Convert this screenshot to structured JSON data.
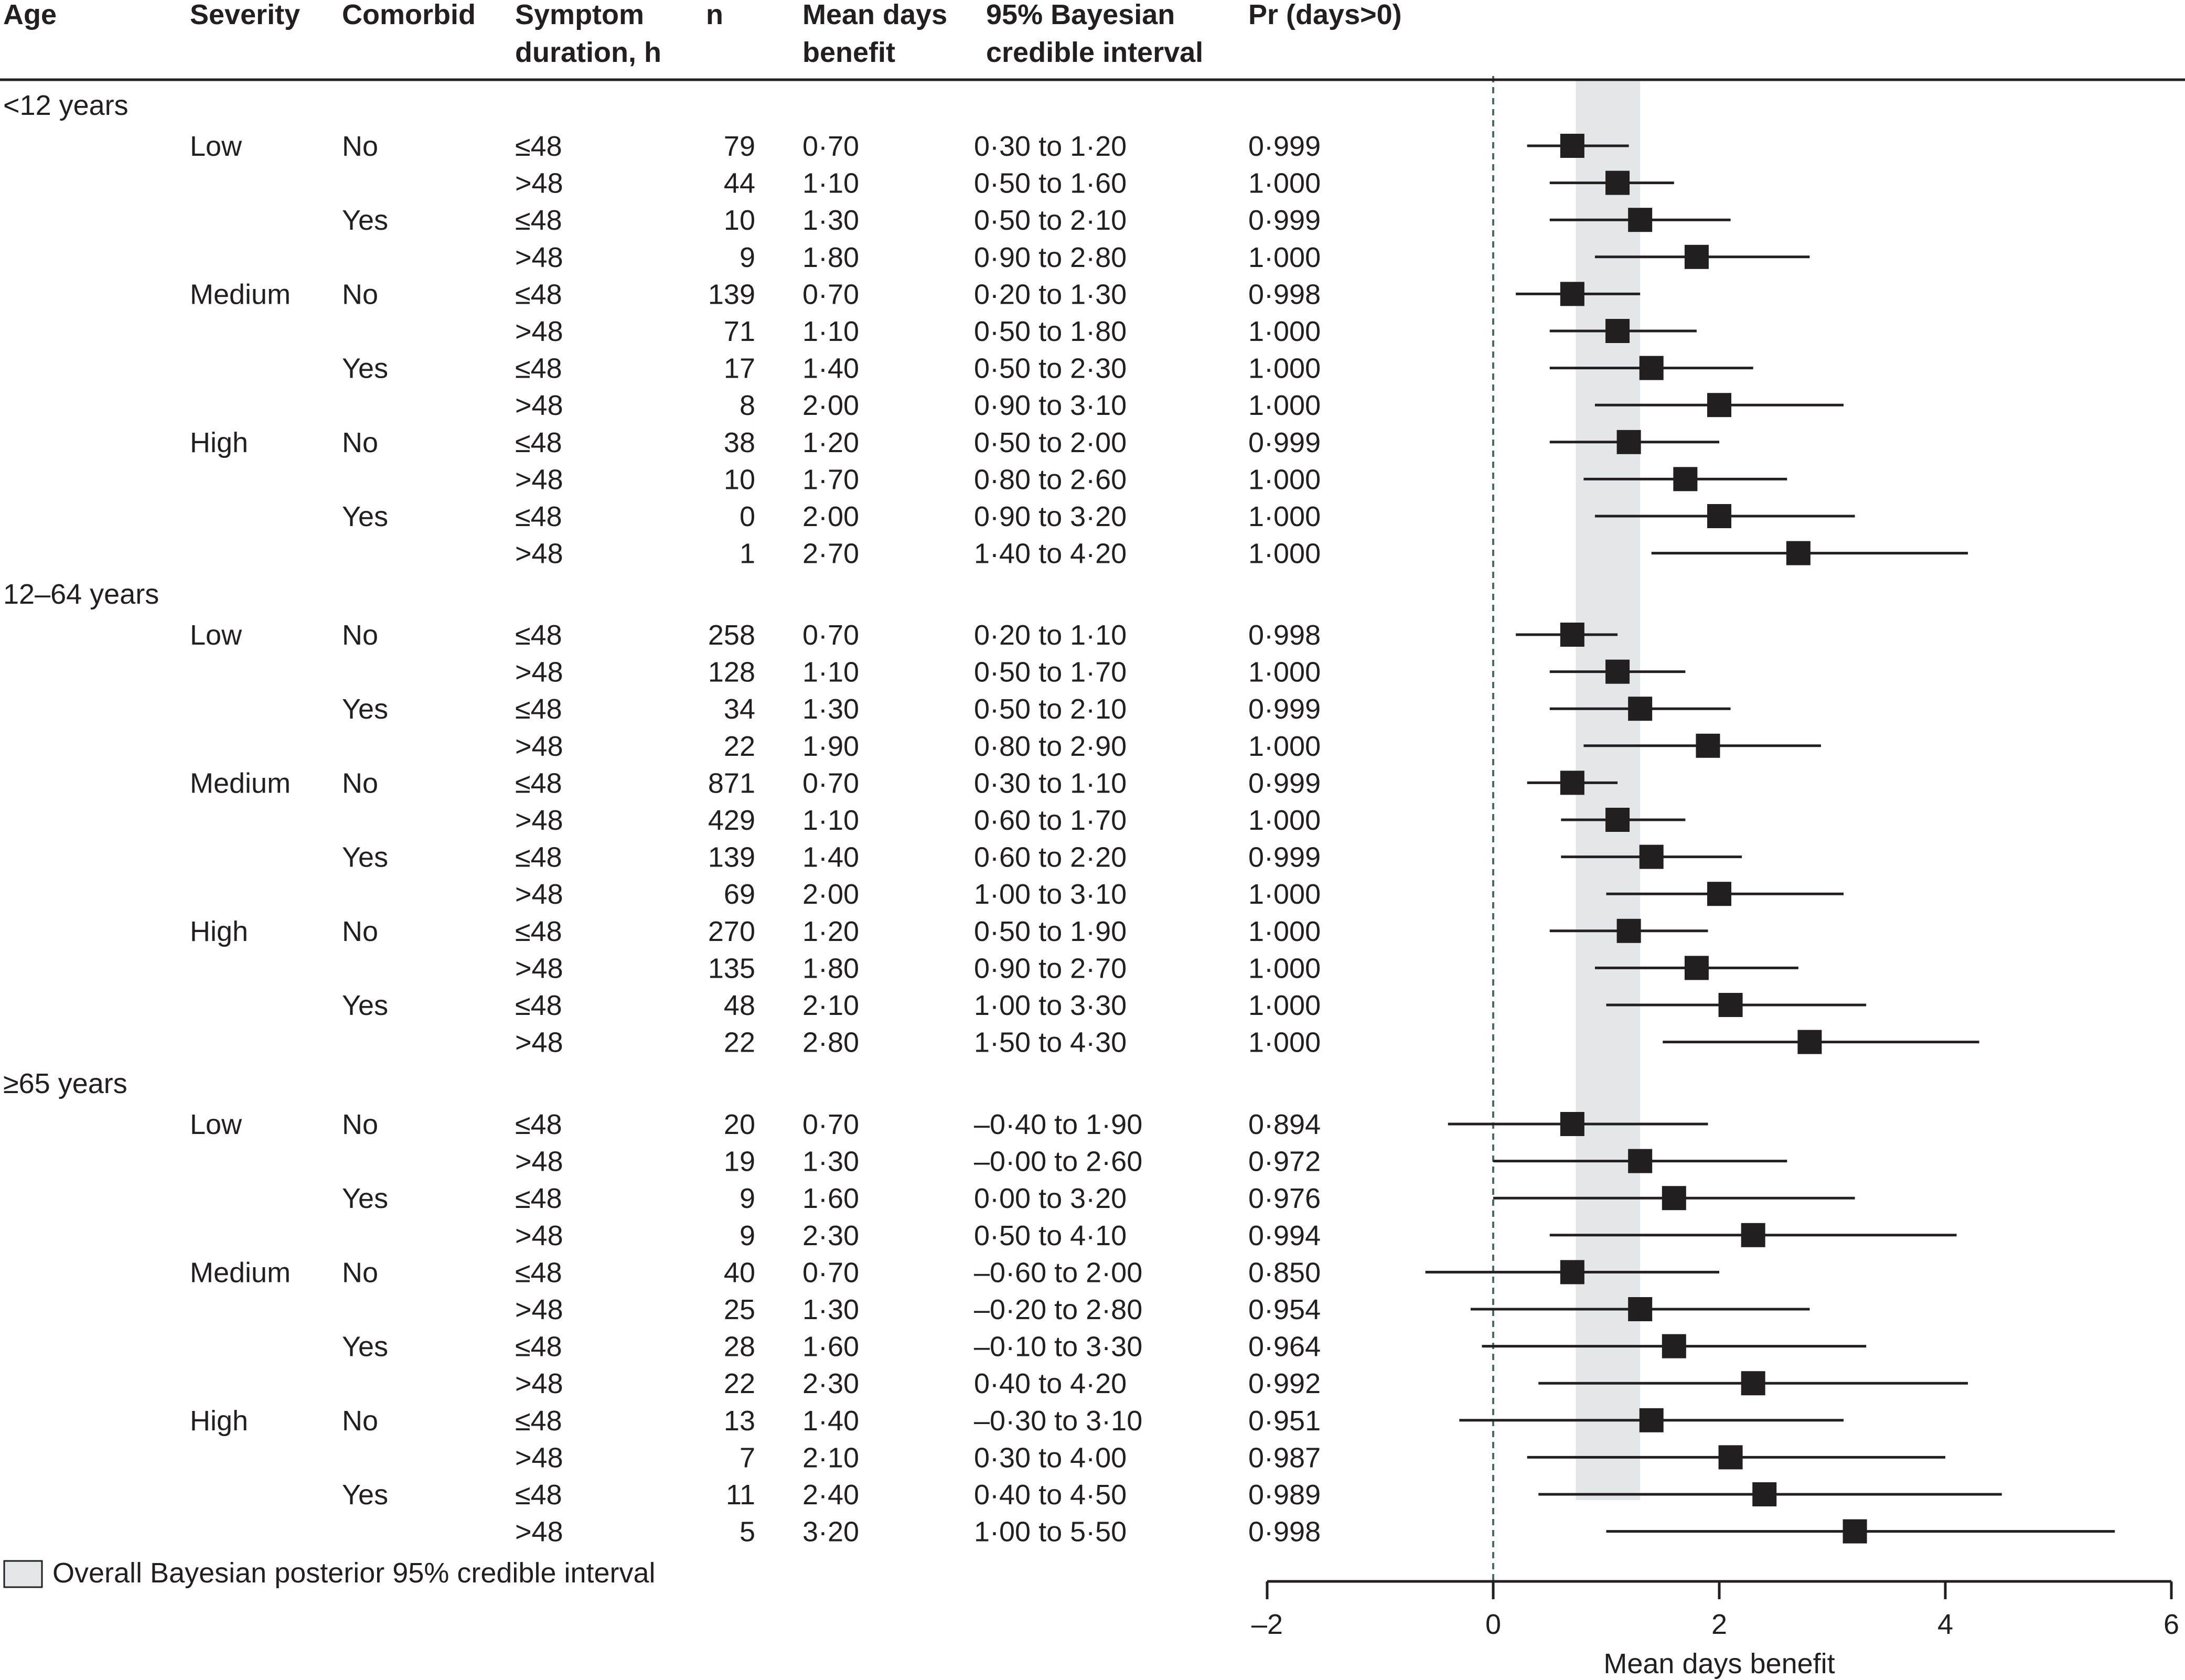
{
  "table": {
    "headers": {
      "age": "Age",
      "severity": "Severity",
      "comorbid": "Comorbid",
      "duration": [
        "Symptom",
        "duration, h"
      ],
      "n": "n",
      "mean": [
        "Mean days",
        "benefit"
      ],
      "ci": [
        "95% Bayesian",
        "credible interval"
      ],
      "pr": "Pr (days>0)"
    },
    "legend": "Overall Bayesian posterior 95% credible interval",
    "groups": [
      {
        "age": "<12 years",
        "rows": [
          {
            "severity": "Low",
            "comorbid": "No",
            "duration": "≤48",
            "n": "79",
            "mean": "0·70",
            "ci": "0·30 to 1·20",
            "pr": "0·999"
          },
          {
            "severity": "",
            "comorbid": "",
            "duration": ">48",
            "n": "44",
            "mean": "1·10",
            "ci": "0·50 to 1·60",
            "pr": "1·000"
          },
          {
            "severity": "",
            "comorbid": "Yes",
            "duration": "≤48",
            "n": "10",
            "mean": "1·30",
            "ci": "0·50 to 2·10",
            "pr": "0·999"
          },
          {
            "severity": "",
            "comorbid": "",
            "duration": ">48",
            "n": "9",
            "mean": "1·80",
            "ci": "0·90 to 2·80",
            "pr": "1·000"
          },
          {
            "severity": "Medium",
            "comorbid": "No",
            "duration": "≤48",
            "n": "139",
            "mean": "0·70",
            "ci": "0·20 to 1·30",
            "pr": "0·998"
          },
          {
            "severity": "",
            "comorbid": "",
            "duration": ">48",
            "n": "71",
            "mean": "1·10",
            "ci": "0·50 to 1·80",
            "pr": "1·000"
          },
          {
            "severity": "",
            "comorbid": "Yes",
            "duration": "≤48",
            "n": "17",
            "mean": "1·40",
            "ci": "0·50 to 2·30",
            "pr": "1·000"
          },
          {
            "severity": "",
            "comorbid": "",
            "duration": ">48",
            "n": "8",
            "mean": "2·00",
            "ci": "0·90 to 3·10",
            "pr": "1·000"
          },
          {
            "severity": "High",
            "comorbid": "No",
            "duration": "≤48",
            "n": "38",
            "mean": "1·20",
            "ci": "0·50 to 2·00",
            "pr": "0·999"
          },
          {
            "severity": "",
            "comorbid": "",
            "duration": ">48",
            "n": "10",
            "mean": "1·70",
            "ci": "0·80 to 2·60",
            "pr": "1·000"
          },
          {
            "severity": "",
            "comorbid": "Yes",
            "duration": "≤48",
            "n": "0",
            "mean": "2·00",
            "ci": "0·90 to 3·20",
            "pr": "1·000"
          },
          {
            "severity": "",
            "comorbid": "",
            "duration": ">48",
            "n": "1",
            "mean": "2·70",
            "ci": "1·40 to 4·20",
            "pr": "1·000"
          }
        ]
      },
      {
        "age": "12–64 years",
        "rows": [
          {
            "severity": "Low",
            "comorbid": "No",
            "duration": "≤48",
            "n": "258",
            "mean": "0·70",
            "ci": "0·20 to 1·10",
            "pr": "0·998"
          },
          {
            "severity": "",
            "comorbid": "",
            "duration": ">48",
            "n": "128",
            "mean": "1·10",
            "ci": "0·50 to 1·70",
            "pr": "1·000"
          },
          {
            "severity": "",
            "comorbid": "Yes",
            "duration": "≤48",
            "n": "34",
            "mean": "1·30",
            "ci": "0·50 to 2·10",
            "pr": "0·999"
          },
          {
            "severity": "",
            "comorbid": "",
            "duration": ">48",
            "n": "22",
            "mean": "1·90",
            "ci": "0·80 to 2·90",
            "pr": "1·000"
          },
          {
            "severity": "Medium",
            "comorbid": "No",
            "duration": "≤48",
            "n": "871",
            "mean": "0·70",
            "ci": "0·30 to 1·10",
            "pr": "0·999"
          },
          {
            "severity": "",
            "comorbid": "",
            "duration": ">48",
            "n": "429",
            "mean": "1·10",
            "ci": "0·60 to 1·70",
            "pr": "1·000"
          },
          {
            "severity": "",
            "comorbid": "Yes",
            "duration": "≤48",
            "n": "139",
            "mean": "1·40",
            "ci": "0·60 to 2·20",
            "pr": "0·999"
          },
          {
            "severity": "",
            "comorbid": "",
            "duration": ">48",
            "n": "69",
            "mean": "2·00",
            "ci": "1·00 to 3·10",
            "pr": "1·000"
          },
          {
            "severity": "High",
            "comorbid": "No",
            "duration": "≤48",
            "n": "270",
            "mean": "1·20",
            "ci": "0·50 to 1·90",
            "pr": "1·000"
          },
          {
            "severity": "",
            "comorbid": "",
            "duration": ">48",
            "n": "135",
            "mean": "1·80",
            "ci": "0·90 to 2·70",
            "pr": "1·000"
          },
          {
            "severity": "",
            "comorbid": "Yes",
            "duration": "≤48",
            "n": "48",
            "mean": "2·10",
            "ci": "1·00 to 3·30",
            "pr": "1·000"
          },
          {
            "severity": "",
            "comorbid": "",
            "duration": ">48",
            "n": "22",
            "mean": "2·80",
            "ci": "1·50 to 4·30",
            "pr": "1·000"
          }
        ]
      },
      {
        "age": "≥65 years",
        "rows": [
          {
            "severity": "Low",
            "comorbid": "No",
            "duration": "≤48",
            "n": "20",
            "mean": "0·70",
            "ci": "–0·40 to 1·90",
            "pr": "0·894"
          },
          {
            "severity": "",
            "comorbid": "",
            "duration": ">48",
            "n": "19",
            "mean": "1·30",
            "ci": "–0·00 to 2·60",
            "pr": "0·972"
          },
          {
            "severity": "",
            "comorbid": "Yes",
            "duration": "≤48",
            "n": "9",
            "mean": "1·60",
            "ci": "0·00 to 3·20",
            "pr": "0·976"
          },
          {
            "severity": "",
            "comorbid": "",
            "duration": ">48",
            "n": "9",
            "mean": "2·30",
            "ci": "0·50 to 4·10",
            "pr": "0·994"
          },
          {
            "severity": "Medium",
            "comorbid": "No",
            "duration": "≤48",
            "n": "40",
            "mean": "0·70",
            "ci": "–0·60 to 2·00",
            "pr": "0·850"
          },
          {
            "severity": "",
            "comorbid": "",
            "duration": ">48",
            "n": "25",
            "mean": "1·30",
            "ci": "–0·20 to 2·80",
            "pr": "0·954"
          },
          {
            "severity": "",
            "comorbid": "Yes",
            "duration": "≤48",
            "n": "28",
            "mean": "1·60",
            "ci": "–0·10 to 3·30",
            "pr": "0·964"
          },
          {
            "severity": "",
            "comorbid": "",
            "duration": ">48",
            "n": "22",
            "mean": "2·30",
            "ci": "0·40 to 4·20",
            "pr": "0·992"
          },
          {
            "severity": "High",
            "comorbid": "No",
            "duration": "≤48",
            "n": "13",
            "mean": "1·40",
            "ci": "–0·30 to 3·10",
            "pr": "0·951"
          },
          {
            "severity": "",
            "comorbid": "",
            "duration": ">48",
            "n": "7",
            "mean": "2·10",
            "ci": "0·30 to 4·00",
            "pr": "0·987"
          },
          {
            "severity": "",
            "comorbid": "Yes",
            "duration": "≤48",
            "n": "11",
            "mean": "2·40",
            "ci": "0·40 to 4·50",
            "pr": "0·989"
          },
          {
            "severity": "",
            "comorbid": "",
            "duration": ">48",
            "n": "5",
            "mean": "3·20",
            "ci": "1·00 to 5·50",
            "pr": "0·998"
          }
        ]
      }
    ]
  },
  "chart_data": {
    "type": "forest",
    "xlabel": "Mean days benefit",
    "xlim": [
      -2,
      6
    ],
    "xticks": [
      -2,
      0,
      2,
      4,
      6
    ],
    "xtick_labels": [
      "–2",
      "0",
      "2",
      "4",
      "6"
    ],
    "reference_line": 0,
    "overall_interval": [
      0.73,
      1.3
    ],
    "colors": {
      "marker": "#231f20",
      "band": "#e4e7ea",
      "refline": "#4a6a6e"
    },
    "series": [
      {
        "group": "<12 years",
        "mean": [
          0.7,
          1.1,
          1.3,
          1.8,
          0.7,
          1.1,
          1.4,
          2.0,
          1.2,
          1.7,
          2.0,
          2.7
        ],
        "lower": [
          0.3,
          0.5,
          0.5,
          0.9,
          0.2,
          0.5,
          0.5,
          0.9,
          0.5,
          0.8,
          0.9,
          1.4
        ],
        "upper": [
          1.2,
          1.6,
          2.1,
          2.8,
          1.3,
          1.8,
          2.3,
          3.1,
          2.0,
          2.6,
          3.2,
          4.2
        ]
      },
      {
        "group": "12–64 years",
        "mean": [
          0.7,
          1.1,
          1.3,
          1.9,
          0.7,
          1.1,
          1.4,
          2.0,
          1.2,
          1.8,
          2.1,
          2.8
        ],
        "lower": [
          0.2,
          0.5,
          0.5,
          0.8,
          0.3,
          0.6,
          0.6,
          1.0,
          0.5,
          0.9,
          1.0,
          1.5
        ],
        "upper": [
          1.1,
          1.7,
          2.1,
          2.9,
          1.1,
          1.7,
          2.2,
          3.1,
          1.9,
          2.7,
          3.3,
          4.3
        ]
      },
      {
        "group": "≥65 years",
        "mean": [
          0.7,
          1.3,
          1.6,
          2.3,
          0.7,
          1.3,
          1.6,
          2.3,
          1.4,
          2.1,
          2.4,
          3.2
        ],
        "lower": [
          -0.4,
          0.0,
          0.0,
          0.5,
          -0.6,
          -0.2,
          -0.1,
          0.4,
          -0.3,
          0.3,
          0.4,
          1.0
        ],
        "upper": [
          1.9,
          2.6,
          3.2,
          4.1,
          2.0,
          2.8,
          3.3,
          4.2,
          3.1,
          4.0,
          4.5,
          5.5
        ]
      }
    ]
  }
}
